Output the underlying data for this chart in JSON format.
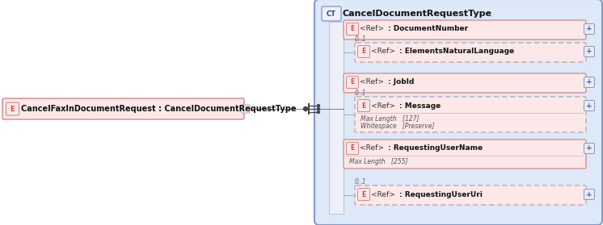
{
  "bg_color": "#ffffff",
  "ct_box_fill": "#dde8f8",
  "ct_box_stroke": "#8899cc",
  "elem_fill": "#fce8e8",
  "elem_stroke_solid": "#d08888",
  "elem_stroke_dashed": "#c0a0a0",
  "bar_fill": "#eef0f8",
  "bar_stroke": "#aaaacc",
  "plus_fill": "#e8eaf6",
  "plus_stroke": "#8899bb",
  "main_element_label": "CancelFaxInDocumentRequest : CancelDocumentRequestType",
  "ct_label": "CancelDocumentRequestType",
  "elements": [
    {
      "label": ": DocumentNumber",
      "dashed": false,
      "sub_text": null,
      "optional": false
    },
    {
      "label": ": ElementsNaturalLanguage",
      "dashed": true,
      "sub_text": null,
      "optional": true
    },
    {
      "label": ": JobId",
      "dashed": false,
      "sub_text": null,
      "optional": false
    },
    {
      "label": ": Message",
      "dashed": true,
      "sub_text": "Max Length   [127]\nWhitespace   [Preserve]",
      "optional": true
    },
    {
      "label": ": RequestingUserName",
      "dashed": false,
      "sub_text": "Max Length   [255]",
      "optional": false
    },
    {
      "label": ": RequestingUserUri",
      "dashed": true,
      "sub_text": null,
      "optional": true
    }
  ],
  "fig_width": 7.46,
  "fig_height": 2.79,
  "dpi": 100
}
